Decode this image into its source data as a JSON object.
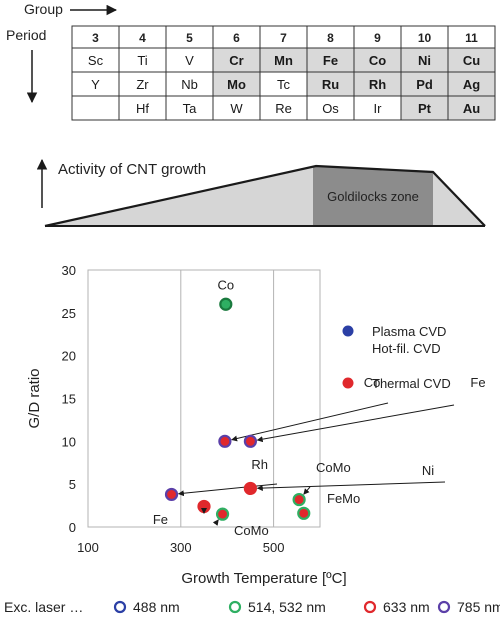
{
  "periodic_table": {
    "group_label": "Group",
    "period_label": "Period",
    "groups": [
      "3",
      "4",
      "5",
      "6",
      "7",
      "8",
      "9",
      "10",
      "11"
    ],
    "rows": [
      [
        {
          "sym": "Sc",
          "hl": false
        },
        {
          "sym": "Ti",
          "hl": false
        },
        {
          "sym": "V",
          "hl": false
        },
        {
          "sym": "Cr",
          "hl": true
        },
        {
          "sym": "Mn",
          "hl": true
        },
        {
          "sym": "Fe",
          "hl": true
        },
        {
          "sym": "Co",
          "hl": true
        },
        {
          "sym": "Ni",
          "hl": true
        },
        {
          "sym": "Cu",
          "hl": true
        }
      ],
      [
        {
          "sym": "Y",
          "hl": false
        },
        {
          "sym": "Zr",
          "hl": false
        },
        {
          "sym": "Nb",
          "hl": false
        },
        {
          "sym": "Mo",
          "hl": true
        },
        {
          "sym": "Tc",
          "hl": false
        },
        {
          "sym": "Ru",
          "hl": true
        },
        {
          "sym": "Rh",
          "hl": true
        },
        {
          "sym": "Pd",
          "hl": true
        },
        {
          "sym": "Ag",
          "hl": true
        }
      ],
      [
        {
          "sym": "",
          "hl": false
        },
        {
          "sym": "Hf",
          "hl": false
        },
        {
          "sym": "Ta",
          "hl": false
        },
        {
          "sym": "W",
          "hl": false
        },
        {
          "sym": "Re",
          "hl": false
        },
        {
          "sym": "Os",
          "hl": false
        },
        {
          "sym": "Ir",
          "hl": false
        },
        {
          "sym": "Pt",
          "hl": true
        },
        {
          "sym": "Au",
          "hl": true
        }
      ]
    ],
    "highlight_color": "#d9d9d9"
  },
  "activity": {
    "label": "Activity of CNT growth",
    "zone_label": "Goldilocks zone",
    "ramp_color": "#d6d6d6",
    "zone_color": "#8c8c8c"
  },
  "chart_data": {
    "type": "scatter",
    "xlabel": "Growth Temperature [ºC]",
    "ylabel": "G/D ratio",
    "xlim": [
      100,
      600
    ],
    "ylim": [
      0,
      30
    ],
    "xticks": [
      "100",
      "300",
      "500"
    ],
    "yticks": [
      "0",
      "5",
      "10",
      "15",
      "20",
      "25",
      "30"
    ],
    "vlines": [
      300,
      500
    ],
    "points": [
      {
        "label": "Co",
        "x": 397,
        "y": 26,
        "fill": "#2eaf62",
        "edge": "#1a7a3e",
        "method": "Plasma CVD Hot-fil. CVD",
        "laser": "514, 532 nm"
      },
      {
        "label": "Co",
        "x": 395,
        "y": 10,
        "fill": "#e0282c",
        "edge": "#5b3fa8",
        "method": "Thermal CVD",
        "laser": "785 nm"
      },
      {
        "label": "Fe",
        "x": 450,
        "y": 10,
        "fill": "#e0282c",
        "edge": "#5b3fa8",
        "method": "Thermal CVD",
        "laser": "785 nm"
      },
      {
        "label": "Rh",
        "x": 280,
        "y": 3.8,
        "fill": "#e0282c",
        "edge": "#5b3fa8",
        "method": "Thermal CVD",
        "laser": "785 nm"
      },
      {
        "label": "Ni",
        "x": 450,
        "y": 4.5,
        "fill": "#e0282c",
        "edge": "#e0282c",
        "method": "Thermal CVD",
        "laser": "633 nm"
      },
      {
        "label": "Fe",
        "x": 350,
        "y": 2.4,
        "fill": "#e0282c",
        "edge": "#e0282c",
        "method": "Thermal CVD",
        "laser": "633 nm"
      },
      {
        "label": "CoMo",
        "x": 390,
        "y": 1.5,
        "fill": "#e0282c",
        "edge": "#2eaf62",
        "method": "Thermal CVD",
        "laser": "514, 532 nm"
      },
      {
        "label": "CoMo",
        "x": 555,
        "y": 3.2,
        "fill": "#e0282c",
        "edge": "#2eaf62",
        "method": "Thermal CVD",
        "laser": "514, 532 nm"
      },
      {
        "label": "FeMo",
        "x": 565,
        "y": 1.6,
        "fill": "#e0282c",
        "edge": "#2eaf62",
        "method": "Thermal CVD",
        "laser": "514, 532 nm"
      }
    ],
    "legend": [
      {
        "label1": "Plasma CVD",
        "label2": "Hot-fil. CVD",
        "color": "#2b3fa5"
      },
      {
        "label1": "Thermal CVD",
        "label2": "",
        "color": "#e0282c"
      }
    ],
    "laser_legend": {
      "title": "Exc. laser …",
      "items": [
        {
          "label": "488 nm",
          "color": "#2b3fa5"
        },
        {
          "label": "514, 532 nm",
          "color": "#2eaf62"
        },
        {
          "label": "633 nm",
          "color": "#e0282c"
        },
        {
          "label": "785 nm",
          "color": "#5b3fa8"
        }
      ]
    }
  }
}
